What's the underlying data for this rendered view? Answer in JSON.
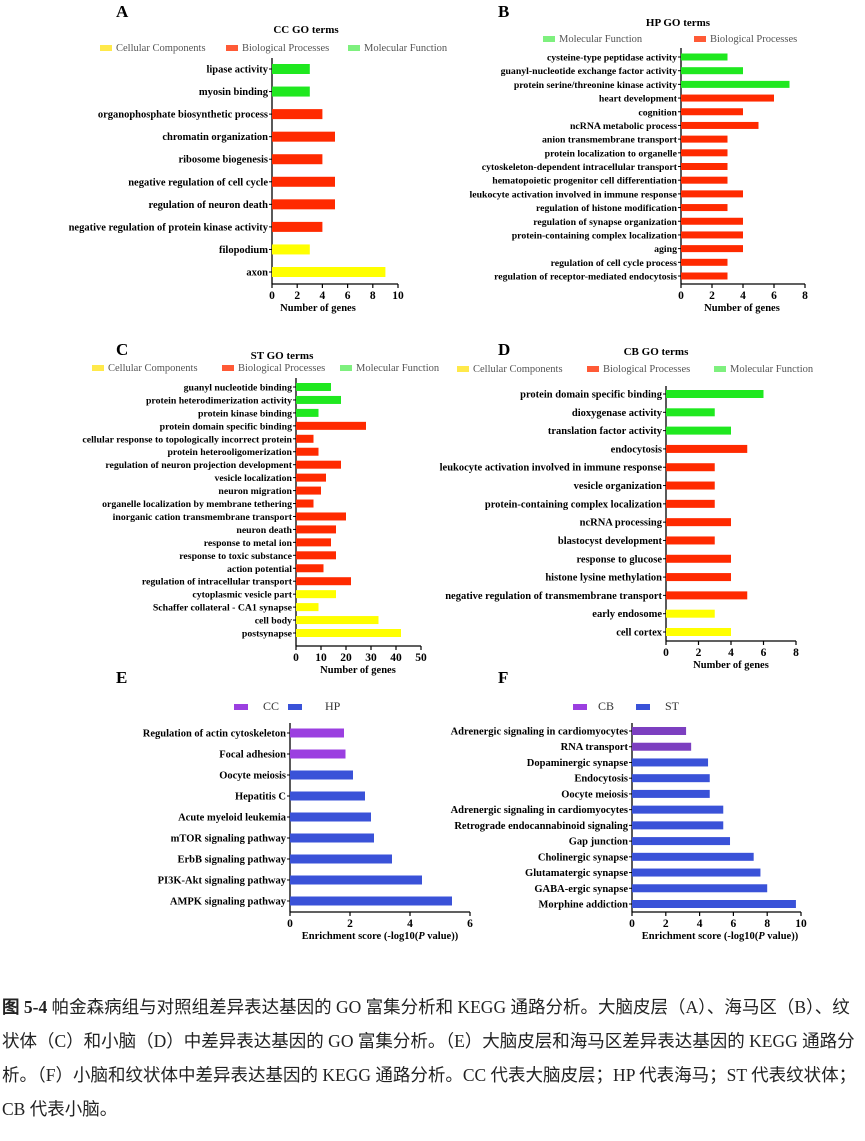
{
  "colors": {
    "cellular_components": "#ffff00",
    "biological_processes": "#ff2a00",
    "molecular_function": "#1fe81f",
    "legend_cc": "#ffe94a",
    "legend_bp": "#ff5a36",
    "legend_mf": "#7ef07e",
    "kegg_purple": "#9b3fe0",
    "kegg_purple_f": "#7c3fc0",
    "kegg_blue": "#3a52d8"
  },
  "chart_data": [
    {
      "id": "A",
      "panel_letter": "A",
      "type": "bar",
      "orientation": "horizontal",
      "title": "CC GO terms",
      "xlabel": "Number of genes",
      "xlim": [
        0,
        10
      ],
      "xticks": [
        "0",
        "2",
        "4",
        "6",
        "8",
        "10"
      ],
      "legend": [
        {
          "name": "Cellular Components",
          "group": "CC"
        },
        {
          "name": "Biological Processes",
          "group": "BP"
        },
        {
          "name": "Molecular Function",
          "group": "MF"
        }
      ],
      "categories": [
        "lipase activity",
        "myosin binding",
        "organophosphate biosynthetic process",
        "chromatin organization",
        "ribosome biogenesis",
        "negative regulation of cell cycle",
        "regulation of neuron death",
        "negative regulation of protein kinase activity",
        "filopodium",
        "axon"
      ],
      "groups": [
        "MF",
        "MF",
        "BP",
        "BP",
        "BP",
        "BP",
        "BP",
        "BP",
        "CC",
        "CC"
      ],
      "values": [
        3,
        3,
        4,
        5,
        4,
        5,
        5,
        4,
        3,
        9
      ]
    },
    {
      "id": "B",
      "panel_letter": "B",
      "type": "bar",
      "orientation": "horizontal",
      "title": "HP GO terms",
      "xlabel": "Number of genes",
      "xlim": [
        0,
        8
      ],
      "xticks": [
        "0",
        "2",
        "4",
        "6",
        "8"
      ],
      "legend": [
        {
          "name": "Molecular Function",
          "group": "MF"
        },
        {
          "name": "Biological Processes",
          "group": "BP"
        }
      ],
      "categories": [
        "cysteine-type peptidase activity",
        "guanyl-nucleotide exchange factor activity",
        "protein serine/threonine kinase activity",
        "heart development",
        "cognition",
        "ncRNA metabolic process",
        "anion transmembrane transport",
        "protein localization to organelle",
        "cytoskeleton-dependent intracellular transport",
        "hematopoietic progenitor cell differentiation",
        "leukocyte activation involved in immune response",
        "regulation of histone modification",
        "regulation of synapse organization",
        "protein-containing complex localization",
        "aging",
        "regulation of cell cycle process",
        "regulation of receptor-mediated endocytosis"
      ],
      "groups": [
        "MF",
        "MF",
        "MF",
        "BP",
        "BP",
        "BP",
        "BP",
        "BP",
        "BP",
        "BP",
        "BP",
        "BP",
        "BP",
        "BP",
        "BP",
        "BP",
        "BP"
      ],
      "values": [
        3,
        4,
        7,
        6,
        4,
        5,
        3,
        3,
        3,
        3,
        4,
        3,
        4,
        4,
        4,
        3,
        3
      ]
    },
    {
      "id": "C",
      "panel_letter": "C",
      "type": "bar",
      "orientation": "horizontal",
      "title": "ST GO terms",
      "xlabel": "Number of genes",
      "xlim": [
        0,
        50
      ],
      "xticks": [
        "0",
        "10",
        "20",
        "30",
        "40",
        "50"
      ],
      "legend": [
        {
          "name": "Cellular Components",
          "group": "CC"
        },
        {
          "name": "Biological Processes",
          "group": "BP"
        },
        {
          "name": "Molecular Function",
          "group": "MF"
        }
      ],
      "categories": [
        "guanyl nucleotide binding",
        "protein heterodimerization activity",
        "protein kinase binding",
        "protein domain specific binding",
        "cellular response to topologically incorrect protein",
        "protein heterooligomerization",
        "regulation of neuron projection development",
        "vesicle localization",
        "neuron migration",
        "organelle localization by membrane tethering",
        "inorganic cation transmembrane transport",
        "neuron death",
        "response to metal ion",
        "response to toxic substance",
        "action potential",
        "regulation of intracellular transport",
        "cytoplasmic vesicle part",
        "Schaffer collateral - CA1 synapse",
        "cell body",
        "postsynapse"
      ],
      "groups": [
        "MF",
        "MF",
        "MF",
        "BP",
        "BP",
        "BP",
        "BP",
        "BP",
        "BP",
        "BP",
        "BP",
        "BP",
        "BP",
        "BP",
        "BP",
        "BP",
        "CC",
        "CC",
        "CC",
        "CC"
      ],
      "values": [
        14,
        18,
        9,
        28,
        7,
        9,
        18,
        12,
        10,
        7,
        20,
        16,
        14,
        16,
        11,
        22,
        16,
        9,
        33,
        42
      ]
    },
    {
      "id": "D",
      "panel_letter": "D",
      "type": "bar",
      "orientation": "horizontal",
      "title": "CB GO terms",
      "xlabel": "Number of genes",
      "xlim": [
        0,
        8
      ],
      "xticks": [
        "0",
        "2",
        "4",
        "6",
        "8"
      ],
      "legend": [
        {
          "name": "Cellular Components",
          "group": "CC"
        },
        {
          "name": "Biological Processes",
          "group": "BP"
        },
        {
          "name": "Molecular Function",
          "group": "MF"
        }
      ],
      "categories": [
        "protein domain specific binding",
        "dioxygenase activity",
        "translation factor activity",
        "endocytosis",
        "leukocyte activation involved in immune response",
        "vesicle organization",
        "protein-containing complex localization",
        "ncRNA processing",
        "blastocyst development",
        "response to glucose",
        "histone lysine methylation",
        "negative regulation of transmembrane transport",
        "early endosome",
        "cell cortex"
      ],
      "groups": [
        "MF",
        "MF",
        "MF",
        "BP",
        "BP",
        "BP",
        "BP",
        "BP",
        "BP",
        "BP",
        "BP",
        "BP",
        "CC",
        "CC"
      ],
      "values": [
        6,
        3,
        4,
        5,
        3,
        3,
        3,
        4,
        3,
        4,
        4,
        5,
        3,
        4
      ]
    },
    {
      "id": "E",
      "panel_letter": "E",
      "type": "bar",
      "orientation": "horizontal",
      "title": "",
      "xlabel": "Enrichment score (-log10(P value))",
      "xlim": [
        0,
        6
      ],
      "xticks": [
        "0",
        "2",
        "4",
        "6"
      ],
      "legend": [
        {
          "name": "CC",
          "group": "P"
        },
        {
          "name": "HP",
          "group": "B"
        }
      ],
      "categories": [
        "Regulation of actin cytoskeleton",
        "Focal adhesion",
        "Oocyte meiosis",
        "Hepatitis C",
        "Acute myeloid leukemia",
        "mTOR signaling pathway",
        "ErbB signaling pathway",
        "PI3K-Akt signaling pathway",
        "AMPK signaling pathway"
      ],
      "groups": [
        "P",
        "P",
        "B",
        "B",
        "B",
        "B",
        "B",
        "B",
        "B"
      ],
      "values": [
        1.8,
        1.85,
        2.1,
        2.5,
        2.7,
        2.8,
        3.4,
        4.4,
        5.4
      ]
    },
    {
      "id": "F",
      "panel_letter": "F",
      "type": "bar",
      "orientation": "horizontal",
      "title": "",
      "xlabel": "Enrichment score (-log10(P value))",
      "xlim": [
        0,
        10
      ],
      "xticks": [
        "0",
        "2",
        "4",
        "6",
        "8",
        "10"
      ],
      "legend": [
        {
          "name": "CB",
          "group": "P"
        },
        {
          "name": "ST",
          "group": "B"
        }
      ],
      "categories": [
        "Adrenergic signaling in cardiomyocytes",
        "RNA transport",
        "Dopaminergic synapse",
        "Endocytosis",
        "Oocyte meiosis",
        "Adrenergic signaling in cardiomyocytes",
        "Retrograde endocannabinoid signaling",
        "Gap junction",
        "Cholinergic synapse",
        "Glutamatergic synapse",
        "GABA-ergic synapse",
        "Morphine addiction"
      ],
      "groups": [
        "P",
        "P",
        "B",
        "B",
        "B",
        "B",
        "B",
        "B",
        "B",
        "B",
        "B",
        "B"
      ],
      "values": [
        3.2,
        3.5,
        4.5,
        4.6,
        4.6,
        5.4,
        5.4,
        5.8,
        7.2,
        7.6,
        8.0,
        9.7
      ]
    }
  ],
  "caption": {
    "label": "图 5-4",
    "text": "帕金森病组与对照组差异表达基因的 GO 富集分析和 KEGG 通路分析。大脑皮层（A）、海马区（B）、纹状体（C）和小脑（D）中差异表达基因的 GO 富集分析。（E）大脑皮层和海马区差异表达基因的 KEGG 通路分析。（F）小脑和纹状体中差异表达基因的 KEGG 通路分析。CC 代表大脑皮层；HP 代表海马；ST 代表纹状体；CB 代表小脑。"
  }
}
